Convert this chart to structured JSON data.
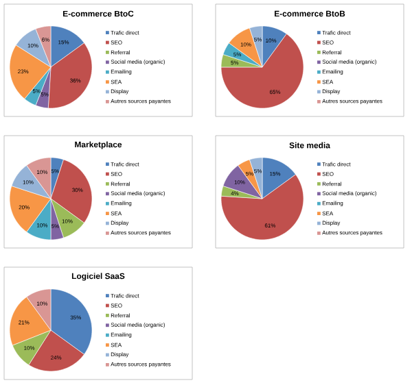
{
  "chart_data": [
    {
      "type": "pie",
      "title": "E-commerce BtoC",
      "categories": [
        "Trafic direct",
        "SEO",
        "Referral",
        "Social media (organic)",
        "Emailing",
        "SEA",
        "Display",
        "Autres sources payantes"
      ],
      "values": [
        15,
        36,
        0,
        5,
        5,
        23,
        10,
        6
      ],
      "value_labels": [
        "15%",
        "36%",
        null,
        "5%",
        "5%",
        "23%",
        "10%",
        "6%"
      ],
      "colors": [
        "#4f81bd",
        "#c0504d",
        "#9bbb59",
        "#8064a2",
        "#4bacc6",
        "#f79646",
        "#95b3d7",
        "#d99694"
      ],
      "legend": "right"
    },
    {
      "type": "pie",
      "title": "E-commerce BtoB",
      "categories": [
        "Trafic direct",
        "SEO",
        "Referral",
        "Social media (organic)",
        "Emailing",
        "SEA",
        "Display",
        "Autres sources payantes"
      ],
      "values": [
        10,
        65,
        5,
        0,
        5,
        10,
        5,
        0
      ],
      "value_labels": [
        "10%",
        "65%",
        "5%",
        null,
        "5%",
        "10%",
        "5%",
        null
      ],
      "colors": [
        "#4f81bd",
        "#c0504d",
        "#9bbb59",
        "#8064a2",
        "#4bacc6",
        "#f79646",
        "#95b3d7",
        "#d99694"
      ],
      "legend": "right"
    },
    {
      "type": "pie",
      "title": "Marketplace",
      "categories": [
        "Trafic direct",
        "SEO",
        "Referral",
        "Social media (organic)",
        "Emailing",
        "SEA",
        "Display",
        "Autres sources payantes"
      ],
      "values": [
        5,
        30,
        10,
        5,
        10,
        20,
        10,
        10
      ],
      "value_labels": [
        "5%",
        "30%",
        "10%",
        "5%",
        "10%",
        "20%",
        "10%",
        "10%"
      ],
      "colors": [
        "#4f81bd",
        "#c0504d",
        "#9bbb59",
        "#8064a2",
        "#4bacc6",
        "#f79646",
        "#95b3d7",
        "#d99694"
      ],
      "legend": "right"
    },
    {
      "type": "pie",
      "title": "Site media",
      "categories": [
        "Trafic direct",
        "SEO",
        "Referral",
        "Social media (organic)",
        "Emailing",
        "SEA",
        "Display",
        "Autres sources payantes"
      ],
      "values": [
        15,
        61,
        4,
        10,
        0,
        5,
        5,
        0
      ],
      "value_labels": [
        "15%",
        "61%",
        "4%",
        "10%",
        null,
        "5%",
        "5%",
        null
      ],
      "colors": [
        "#4f81bd",
        "#c0504d",
        "#9bbb59",
        "#8064a2",
        "#4bacc6",
        "#f79646",
        "#95b3d7",
        "#d99694"
      ],
      "legend": "right"
    },
    {
      "type": "pie",
      "title": "Logiciel SaaS",
      "categories": [
        "Trafic direct",
        "SEO",
        "Referral",
        "Social media (organic)",
        "Emailing",
        "SEA",
        "Display",
        "Autres sources payantes"
      ],
      "values": [
        35,
        24,
        10,
        0,
        0,
        21,
        0,
        10
      ],
      "value_labels": [
        "35%",
        "24%",
        "10%",
        null,
        null,
        "21%",
        null,
        "10%"
      ],
      "colors": [
        "#4f81bd",
        "#c0504d",
        "#9bbb59",
        "#8064a2",
        "#4bacc6",
        "#f79646",
        "#95b3d7",
        "#d99694"
      ],
      "legend": "right"
    }
  ]
}
